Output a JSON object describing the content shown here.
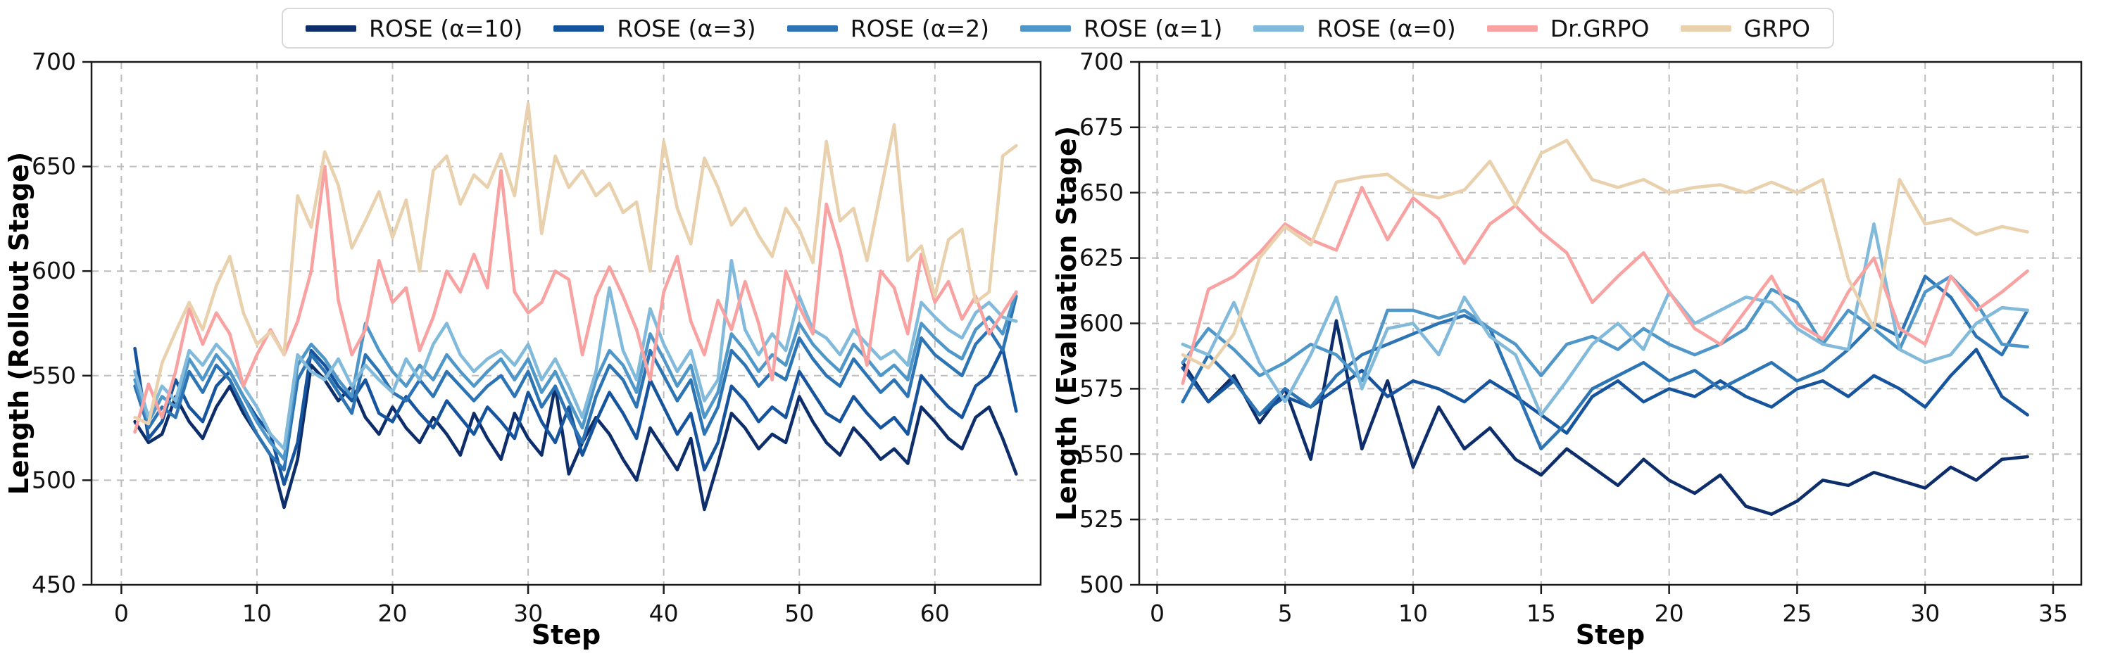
{
  "figure": {
    "background": "#ffffff",
    "grid_color": "#bdbdbd",
    "spine_color": "#1a1a1a"
  },
  "legend": {
    "items": [
      {
        "label": "ROSE (α=10)",
        "color": "#0d2e6b"
      },
      {
        "label": "ROSE (α=3)",
        "color": "#17549e"
      },
      {
        "label": "ROSE (α=2)",
        "color": "#2d74b5"
      },
      {
        "label": "ROSE (α=1)",
        "color": "#4f97c9"
      },
      {
        "label": "ROSE (α=0)",
        "color": "#82badb"
      },
      {
        "label": "Dr.GRPO",
        "color": "#f9a2a2"
      },
      {
        "label": "GRPO",
        "color": "#e9d1ad"
      }
    ]
  },
  "chart_data": [
    {
      "type": "line",
      "id": "rollout",
      "xlabel": "Step",
      "ylabel": "Length (Rollout Stage)",
      "xlim": [
        -2.2,
        67.8
      ],
      "ylim": [
        450,
        700
      ],
      "xticks": [
        0,
        10,
        20,
        30,
        40,
        50,
        60
      ],
      "yticks": [
        450,
        500,
        550,
        600,
        650,
        700
      ],
      "grid": true,
      "legend_position": "top-outside",
      "x_start": 1,
      "series": [
        {
          "name": "ROSE (α=10)",
          "color": "#0d2e6b",
          "values": [
            528,
            518,
            522,
            540,
            528,
            520,
            535,
            545,
            532,
            522,
            512,
            487,
            510,
            555,
            548,
            538,
            545,
            530,
            522,
            535,
            525,
            518,
            530,
            522,
            512,
            532,
            520,
            510,
            532,
            520,
            512,
            545,
            503,
            518,
            530,
            522,
            510,
            500,
            525,
            515,
            505,
            520,
            486,
            508,
            532,
            525,
            515,
            522,
            518,
            540,
            528,
            518,
            512,
            525,
            518,
            510,
            515,
            508,
            535,
            528,
            520,
            515,
            530,
            535,
            520,
            503
          ]
        },
        {
          "name": "ROSE (α=3)",
          "color": "#17549e",
          "values": [
            563,
            520,
            528,
            548,
            535,
            528,
            545,
            552,
            540,
            530,
            522,
            498,
            518,
            562,
            555,
            545,
            538,
            548,
            532,
            528,
            540,
            532,
            525,
            538,
            530,
            522,
            535,
            528,
            520,
            542,
            528,
            518,
            535,
            512,
            528,
            542,
            532,
            520,
            548,
            535,
            522,
            532,
            505,
            518,
            545,
            538,
            528,
            535,
            530,
            552,
            542,
            532,
            528,
            540,
            532,
            525,
            530,
            522,
            550,
            542,
            535,
            530,
            545,
            550,
            563,
            533
          ]
        },
        {
          "name": "ROSE (α=2)",
          "color": "#2d74b5",
          "values": [
            545,
            525,
            535,
            530,
            552,
            542,
            555,
            548,
            535,
            522,
            512,
            505,
            548,
            560,
            552,
            542,
            532,
            560,
            552,
            542,
            538,
            548,
            540,
            552,
            545,
            538,
            545,
            550,
            540,
            552,
            535,
            545,
            530,
            518,
            540,
            555,
            548,
            535,
            562,
            550,
            538,
            548,
            522,
            535,
            562,
            555,
            545,
            552,
            548,
            568,
            558,
            550,
            545,
            558,
            550,
            542,
            548,
            540,
            568,
            560,
            555,
            550,
            565,
            572,
            562,
            588
          ]
        },
        {
          "name": "ROSE (α=1)",
          "color": "#4f97c9",
          "values": [
            548,
            528,
            540,
            535,
            558,
            548,
            560,
            552,
            540,
            528,
            518,
            510,
            555,
            565,
            558,
            548,
            540,
            575,
            562,
            552,
            545,
            555,
            548,
            560,
            552,
            545,
            552,
            558,
            548,
            558,
            542,
            552,
            538,
            525,
            548,
            562,
            555,
            542,
            570,
            558,
            545,
            555,
            530,
            542,
            570,
            562,
            552,
            560,
            555,
            575,
            565,
            558,
            552,
            565,
            558,
            550,
            555,
            548,
            575,
            568,
            562,
            558,
            572,
            578,
            570,
            590
          ]
        },
        {
          "name": "ROSE (α=0)",
          "color": "#82badb",
          "values": [
            552,
            530,
            545,
            538,
            562,
            555,
            565,
            558,
            545,
            535,
            522,
            515,
            560,
            552,
            548,
            558,
            545,
            555,
            548,
            542,
            558,
            548,
            565,
            575,
            560,
            552,
            558,
            562,
            555,
            565,
            548,
            558,
            545,
            530,
            552,
            592,
            562,
            548,
            582,
            565,
            552,
            562,
            538,
            548,
            605,
            572,
            560,
            570,
            562,
            588,
            572,
            568,
            560,
            572,
            565,
            558,
            562,
            555,
            585,
            578,
            572,
            568,
            580,
            585,
            578,
            576
          ]
        },
        {
          "name": "Dr.GRPO",
          "color": "#f9a2a2",
          "values": [
            523,
            546,
            530,
            552,
            582,
            565,
            580,
            570,
            545,
            560,
            572,
            560,
            576,
            600,
            650,
            586,
            560,
            572,
            605,
            585,
            592,
            562,
            578,
            600,
            590,
            608,
            592,
            648,
            590,
            580,
            585,
            600,
            596,
            560,
            588,
            602,
            588,
            572,
            548,
            590,
            607,
            576,
            560,
            586,
            572,
            595,
            575,
            548,
            600,
            583,
            570,
            632,
            610,
            580,
            555,
            600,
            592,
            570,
            608,
            585,
            595,
            577,
            588,
            570,
            580,
            590
          ]
        },
        {
          "name": "GRPO",
          "color": "#e9d1ad",
          "values": [
            530,
            527,
            556,
            571,
            585,
            572,
            593,
            607,
            580,
            565,
            571,
            560,
            636,
            621,
            657,
            641,
            611,
            624,
            638,
            616,
            634,
            600,
            648,
            655,
            632,
            646,
            640,
            656,
            636,
            680,
            618,
            655,
            640,
            648,
            636,
            642,
            628,
            633,
            600,
            662,
            630,
            613,
            654,
            640,
            622,
            630,
            617,
            607,
            630,
            620,
            604,
            662,
            624,
            630,
            605,
            638,
            670,
            605,
            612,
            588,
            615,
            620,
            585,
            590,
            655,
            660
          ]
        }
      ]
    },
    {
      "type": "line",
      "id": "evaluation",
      "xlabel": "Step",
      "ylabel": "Length (Evaluation Stage)",
      "xlim": [
        -0.7,
        36.1
      ],
      "ylim": [
        500,
        700
      ],
      "xticks": [
        0,
        5,
        10,
        15,
        20,
        25,
        30,
        35
      ],
      "yticks": [
        500,
        525,
        550,
        575,
        600,
        625,
        650,
        675,
        700
      ],
      "grid": true,
      "legend_position": "top-outside",
      "x_start": 1,
      "series": [
        {
          "name": "ROSE (α=10)",
          "color": "#0d2e6b",
          "values": [
            585,
            570,
            580,
            562,
            575,
            548,
            601,
            552,
            578,
            545,
            568,
            552,
            560,
            548,
            542,
            552,
            545,
            538,
            548,
            540,
            535,
            542,
            530,
            527,
            532,
            540,
            538,
            543,
            540,
            537,
            545,
            540,
            548,
            549
          ]
        },
        {
          "name": "ROSE (α=3)",
          "color": "#17549e",
          "values": [
            583,
            570,
            578,
            565,
            572,
            568,
            575,
            582,
            572,
            578,
            575,
            570,
            578,
            572,
            565,
            558,
            572,
            578,
            570,
            575,
            572,
            578,
            572,
            568,
            575,
            578,
            572,
            580,
            575,
            568,
            580,
            590,
            572,
            565
          ]
        },
        {
          "name": "ROSE (α=2)",
          "color": "#2d74b5",
          "values": [
            570,
            588,
            578,
            565,
            575,
            568,
            580,
            588,
            592,
            596,
            600,
            603,
            598,
            575,
            552,
            562,
            575,
            580,
            585,
            578,
            582,
            575,
            580,
            585,
            578,
            582,
            590,
            600,
            595,
            618,
            610,
            595,
            588,
            605
          ]
        },
        {
          "name": "ROSE (α=1)",
          "color": "#4f97c9",
          "values": [
            585,
            598,
            590,
            580,
            585,
            592,
            588,
            578,
            605,
            605,
            602,
            605,
            598,
            592,
            580,
            592,
            595,
            590,
            598,
            592,
            588,
            592,
            598,
            613,
            608,
            592,
            605,
            598,
            590,
            612,
            618,
            608,
            592,
            591
          ]
        },
        {
          "name": "ROSE (α=0)",
          "color": "#82badb",
          "values": [
            592,
            588,
            608,
            585,
            570,
            588,
            610,
            575,
            598,
            600,
            588,
            610,
            595,
            588,
            565,
            578,
            592,
            600,
            590,
            612,
            600,
            605,
            610,
            608,
            598,
            592,
            590,
            638,
            590,
            585,
            588,
            600,
            606,
            605
          ]
        },
        {
          "name": "Dr.GRPO",
          "color": "#f9a2a2",
          "values": [
            577,
            613,
            618,
            627,
            638,
            632,
            628,
            652,
            632,
            648,
            640,
            623,
            638,
            645,
            635,
            627,
            608,
            618,
            627,
            612,
            598,
            592,
            605,
            618,
            600,
            594,
            612,
            625,
            598,
            592,
            618,
            605,
            612,
            620
          ]
        },
        {
          "name": "GRPO",
          "color": "#e9d1ad",
          "values": [
            588,
            583,
            596,
            625,
            637,
            630,
            654,
            656,
            657,
            650,
            648,
            651,
            662,
            645,
            665,
            670,
            655,
            652,
            655,
            650,
            652,
            653,
            650,
            654,
            650,
            655,
            617,
            598,
            655,
            638,
            640,
            634,
            637,
            635
          ]
        }
      ]
    }
  ]
}
